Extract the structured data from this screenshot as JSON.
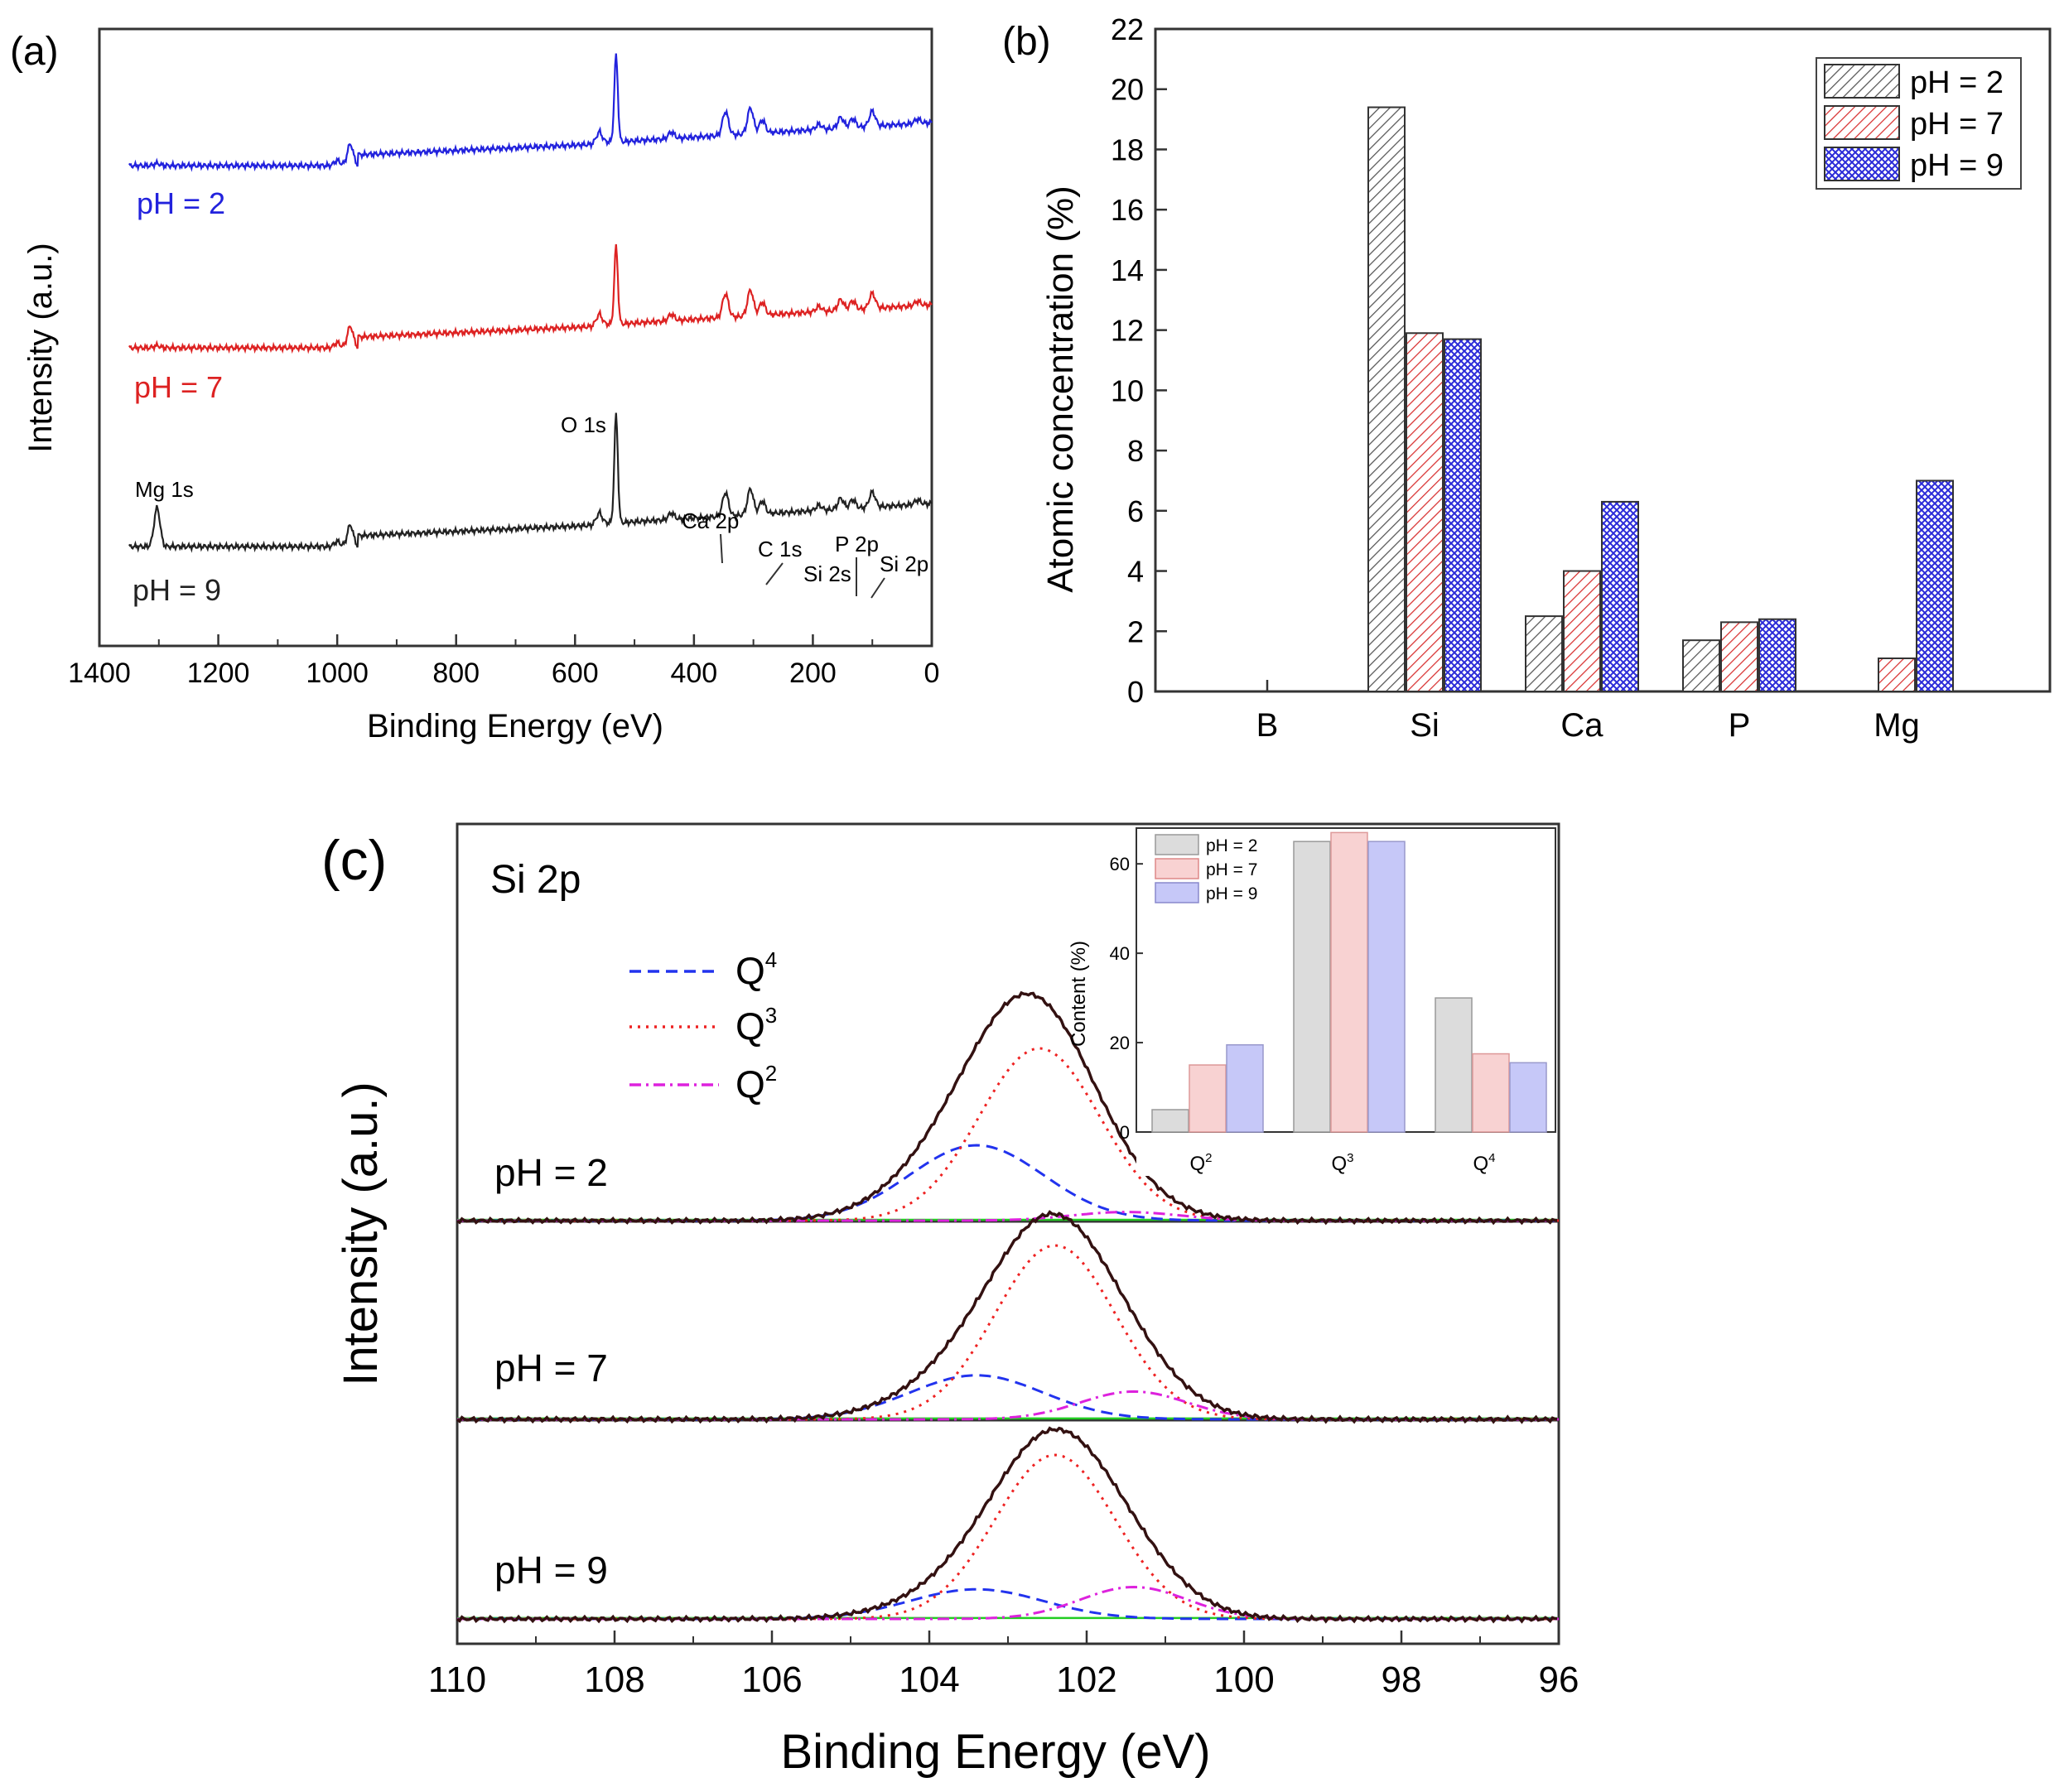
{
  "colors": {
    "ph2": "#2222dd",
    "ph7": "#dd2222",
    "ph9": "#222222",
    "q4": "#2233ee",
    "q3": "#ee2222",
    "q2": "#dd22dd",
    "baseline": "#22cc22",
    "envelope": "#331111"
  },
  "chart_data": [
    {
      "panel_label": "(a)",
      "type": "line",
      "title": "",
      "xlabel": "Binding Energy (eV)",
      "ylabel": "Intensity (a.u.)",
      "xlim": [
        1400,
        0
      ],
      "xticks": [
        "1400",
        "1200",
        "1000",
        "800",
        "600",
        "400",
        "200",
        "0"
      ],
      "series": [
        {
          "name": "pH = 2",
          "offset": 2.0
        },
        {
          "name": "pH = 7",
          "offset": 1.0
        },
        {
          "name": "pH = 9",
          "offset": 0.0
        }
      ],
      "peaks_eV": [
        1303,
        1000,
        978,
        560,
        531,
        438,
        347,
        305,
        285,
        190,
        153,
        133,
        100,
        24
      ],
      "peak_heights": [
        0.9,
        0.12,
        0.5,
        0.25,
        3.6,
        0.15,
        0.55,
        0.6,
        0.3,
        0.12,
        0.25,
        0.2,
        0.35,
        0.1
      ],
      "annotations": [
        "Mg 1s",
        "O 1s",
        "Ca 2p",
        "C 1s",
        "P 2p",
        "Si 2s",
        "Si 2p"
      ]
    },
    {
      "panel_label": "(b)",
      "type": "bar",
      "title": "",
      "xlabel": "",
      "ylabel": "Atomic concentration (%)",
      "ylim": [
        0,
        22
      ],
      "yticks": [
        "0",
        "2",
        "4",
        "6",
        "8",
        "10",
        "12",
        "14",
        "16",
        "18",
        "20",
        "22"
      ],
      "categories": [
        "B",
        "Si",
        "Ca",
        "P",
        "Mg"
      ],
      "series": [
        {
          "name": "pH = 2",
          "values": [
            0,
            19.4,
            2.5,
            1.7,
            0
          ]
        },
        {
          "name": "pH = 7",
          "values": [
            0,
            11.9,
            4.0,
            2.3,
            1.1
          ]
        },
        {
          "name": "pH = 9",
          "values": [
            0,
            11.7,
            6.3,
            2.4,
            7.0
          ]
        }
      ],
      "legend": "top-right"
    },
    {
      "panel_label": "(c)",
      "type": "line",
      "title": "Si 2p",
      "xlabel": "Binding Energy (eV)",
      "ylabel": "Intensity (a.u.)",
      "xlim": [
        110,
        96
      ],
      "xticks": [
        "110",
        "108",
        "106",
        "104",
        "102",
        "100",
        "98",
        "96"
      ],
      "legend_labels": {
        "q4": "Q",
        "q4_sup": "4",
        "q3": "Q",
        "q3_sup": "3",
        "q2": "Q",
        "q2_sup": "2"
      },
      "spectra": [
        {
          "name": "pH = 2",
          "Q4": {
            "center": 103.4,
            "height": 0.35,
            "fwhm": 2.0
          },
          "Q3": {
            "center": 102.6,
            "height": 0.8,
            "fwhm": 1.8
          },
          "Q2": {
            "center": 101.5,
            "height": 0.04,
            "fwhm": 1.6
          }
        },
        {
          "name": "pH = 7",
          "Q4": {
            "center": 103.4,
            "height": 0.19,
            "fwhm": 2.0
          },
          "Q3": {
            "center": 102.4,
            "height": 0.75,
            "fwhm": 1.8
          },
          "Q2": {
            "center": 101.4,
            "height": 0.12,
            "fwhm": 1.6
          }
        },
        {
          "name": "pH = 9",
          "Q4": {
            "center": 103.4,
            "height": 0.13,
            "fwhm": 2.0
          },
          "Q3": {
            "center": 102.4,
            "height": 0.72,
            "fwhm": 1.8
          },
          "Q2": {
            "center": 101.4,
            "height": 0.14,
            "fwhm": 1.6
          }
        }
      ]
    },
    {
      "panel_label": "(c) inset",
      "type": "bar",
      "ylabel": "Content (%)",
      "ylim": [
        0,
        68
      ],
      "yticks": [
        "0",
        "20",
        "40",
        "60"
      ],
      "categories": [
        "Q",
        "Q",
        "Q"
      ],
      "category_sups": [
        "2",
        "3",
        "4"
      ],
      "series": [
        {
          "name": "pH = 2",
          "values": [
            5,
            65,
            30
          ]
        },
        {
          "name": "pH = 7",
          "values": [
            15,
            67,
            17.5
          ]
        },
        {
          "name": "pH = 9",
          "values": [
            19.5,
            65,
            15.5
          ]
        }
      ],
      "legend": "top-left"
    }
  ]
}
